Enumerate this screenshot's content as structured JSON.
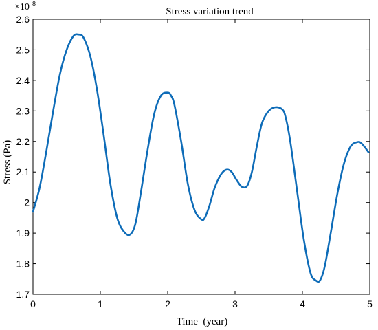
{
  "chart_data": {
    "type": "line",
    "title": "Stress variation trend",
    "xlabel": "Time  (year)",
    "ylabel": "Stress (Pa)",
    "y_multiplier": "×10",
    "y_multiplier_exp": "8",
    "xlim": [
      0,
      5
    ],
    "ylim": [
      1.7,
      2.6
    ],
    "x_ticks": [
      "0",
      "1",
      "2",
      "3",
      "4",
      "5"
    ],
    "y_ticks": [
      "1.7",
      "1.8",
      "1.9",
      "2",
      "2.1",
      "2.2",
      "2.3",
      "2.4",
      "2.5",
      "2.6"
    ],
    "grid": false,
    "line_color": "#0E6CB8",
    "series": [
      {
        "x": [
          0.0,
          0.1,
          0.2,
          0.3,
          0.4,
          0.5,
          0.6,
          0.68,
          0.75,
          0.85,
          0.95,
          1.05,
          1.15,
          1.25,
          1.35,
          1.44,
          1.52,
          1.6,
          1.7,
          1.8,
          1.9,
          2.0,
          2.05,
          2.1,
          2.2,
          2.3,
          2.4,
          2.5,
          2.55,
          2.62,
          2.7,
          2.8,
          2.88,
          2.95,
          3.02,
          3.1,
          3.18,
          3.25,
          3.32,
          3.4,
          3.5,
          3.6,
          3.7,
          3.75,
          3.82,
          3.92,
          4.02,
          4.12,
          4.2,
          4.26,
          4.33,
          4.42,
          4.52,
          4.62,
          4.72,
          4.82,
          4.87,
          4.93,
          4.98
        ],
        "y": [
          1.97,
          2.05,
          2.17,
          2.3,
          2.42,
          2.5,
          2.545,
          2.55,
          2.54,
          2.48,
          2.37,
          2.22,
          2.06,
          1.95,
          1.905,
          1.895,
          1.93,
          2.03,
          2.17,
          2.29,
          2.35,
          2.36,
          2.35,
          2.32,
          2.2,
          2.06,
          1.975,
          1.945,
          1.95,
          1.99,
          2.05,
          2.095,
          2.108,
          2.1,
          2.075,
          2.052,
          2.055,
          2.1,
          2.18,
          2.26,
          2.3,
          2.312,
          2.305,
          2.28,
          2.2,
          2.04,
          1.88,
          1.77,
          1.745,
          1.745,
          1.79,
          1.9,
          2.03,
          2.13,
          2.185,
          2.198,
          2.195,
          2.18,
          2.165
        ]
      }
    ]
  }
}
